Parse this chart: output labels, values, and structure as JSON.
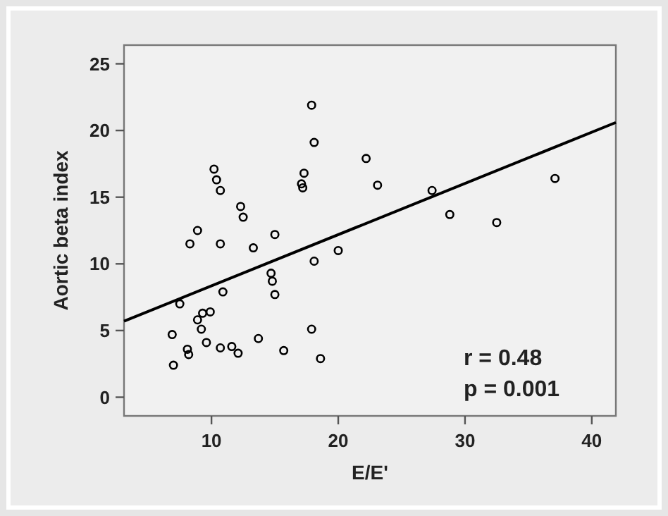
{
  "chart_data": {
    "type": "scatter",
    "xlabel": "E/E'",
    "ylabel": "Aortic beta index",
    "xlim": [
      3.1,
      41.9
    ],
    "ylim": [
      -1.4,
      26.4
    ],
    "xticks": [
      10,
      20,
      30,
      40
    ],
    "yticks": [
      0,
      5,
      10,
      15,
      20,
      25
    ],
    "grid": false,
    "series": [
      {
        "color": "#000000",
        "marker": "circle",
        "x": [
          6.9,
          7,
          7.5,
          8.1,
          8.2,
          8.3,
          8.9,
          8.9,
          9.2,
          9.3,
          9.6,
          9.9,
          10.2,
          10.4,
          10.7,
          10.7,
          10.7,
          10.9,
          11.6,
          12.1,
          12.3,
          12.5,
          13.3,
          13.7,
          14.7,
          14.8,
          15,
          15,
          15.7,
          17.1,
          17.2,
          17.3,
          17.9,
          17.9,
          18.1,
          18.1,
          18.6,
          20,
          22.2,
          23.1,
          27.4,
          28.8,
          32.5,
          37.1
        ],
        "values": [
          4.7,
          2.4,
          7,
          3.6,
          3.2,
          11.5,
          12.5,
          5.8,
          5.1,
          6.3,
          4.1,
          6.4,
          17.1,
          16.3,
          15.5,
          11.5,
          3.7,
          7.9,
          3.8,
          3.3,
          14.3,
          13.5,
          11.2,
          4.4,
          9.3,
          8.7,
          12.2,
          7.7,
          3.5,
          16,
          15.7,
          16.8,
          21.9,
          5.1,
          10.2,
          19.1,
          2.9,
          11,
          17.9,
          15.9,
          15.5,
          13.7,
          13.1,
          16.4
        ]
      },
      {
        "type": "line",
        "marker": "none",
        "color": "#000000",
        "x": [
          3.1,
          41.9
        ],
        "values": [
          5.7,
          20.6
        ]
      }
    ],
    "annotations": [
      "r = 0.48",
      "p = 0.001"
    ]
  }
}
